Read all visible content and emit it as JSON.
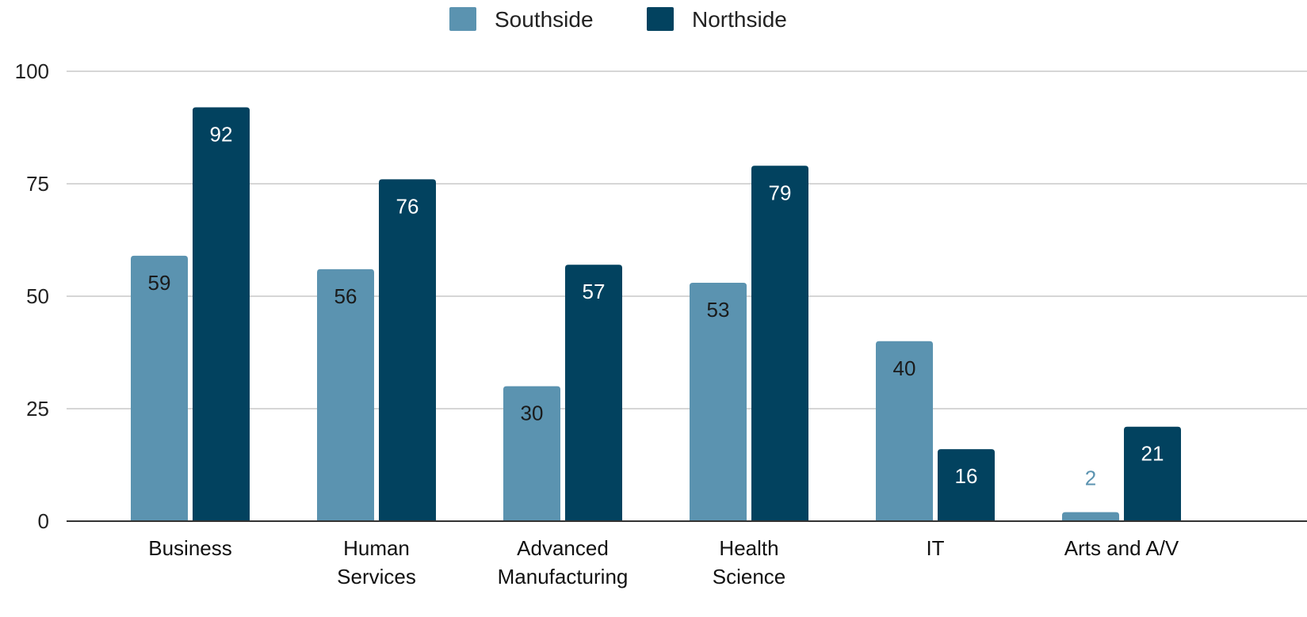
{
  "chart_data": {
    "type": "bar",
    "title": "",
    "xlabel": "",
    "ylabel": "",
    "categories": [
      [
        "Business"
      ],
      [
        "Human",
        "Services"
      ],
      [
        "Advanced",
        "Manufacturing"
      ],
      [
        "Health",
        "Science"
      ],
      [
        "IT"
      ],
      [
        "Arts and A/V"
      ]
    ],
    "series": [
      {
        "name": "Southside",
        "color": "#5b93b0",
        "values": [
          59,
          56,
          30,
          53,
          40,
          2
        ]
      },
      {
        "name": "Northside",
        "color": "#02425f",
        "values": [
          92,
          76,
          57,
          79,
          16,
          21
        ]
      }
    ],
    "ylim": [
      0,
      100
    ],
    "yticks": [
      0,
      25,
      50,
      75,
      100
    ],
    "grid": true,
    "legend_position": "top-center"
  }
}
